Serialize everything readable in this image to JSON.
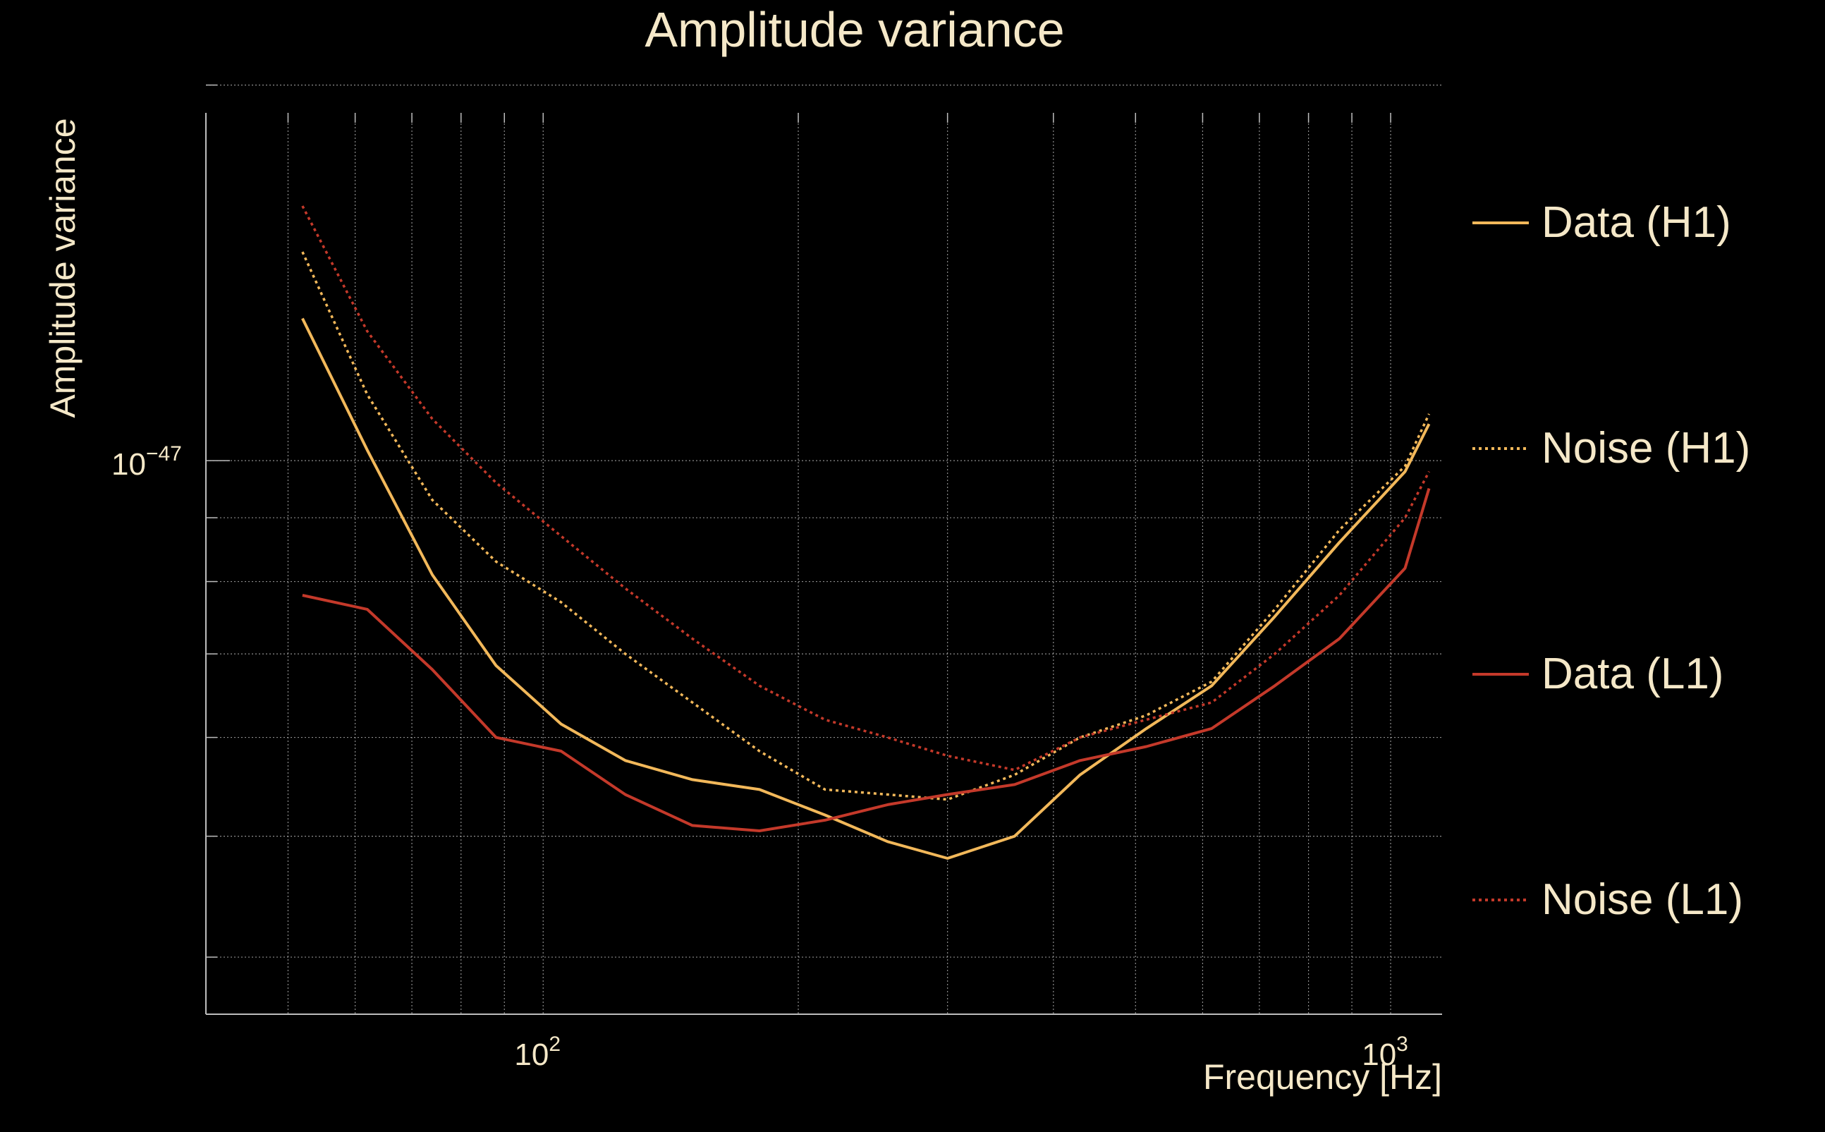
{
  "colors": {
    "background": "#000000",
    "text": "#F5E8C8",
    "grid": "#bdbdbd",
    "axis": "#bdbdbd"
  },
  "chart_data": {
    "type": "line",
    "title": "Amplitude variance",
    "xlabel": "Frequency [Hz]",
    "ylabel": "Amplitude variance",
    "xscale": "log",
    "yscale": "log",
    "xlim": [
      40,
      1150
    ],
    "ylim": [
      3.6e-48,
      1.9e-47
    ],
    "grid": true,
    "legend_position": "right",
    "x_tick_labels": [
      {
        "value": 100,
        "base": "10",
        "exp": "2"
      },
      {
        "value": 1000,
        "base": "10",
        "exp": "3"
      }
    ],
    "y_tick_labels": [
      {
        "value": 1e-47,
        "base": "10",
        "exp": "−47"
      }
    ],
    "x_minor_ticks": [
      40,
      50,
      60,
      70,
      80,
      90,
      200,
      300,
      400,
      500,
      600,
      700,
      800,
      900
    ],
    "y_minor_ticks": [
      4e-48,
      5e-48,
      6e-48,
      7e-48,
      8e-48,
      9e-48,
      2e-47
    ],
    "series": [
      {
        "name": "Data (H1)",
        "color": "#F2B85A",
        "dash": "solid",
        "x": [
          52,
          62,
          74,
          88,
          105,
          125,
          150,
          180,
          215,
          255,
          300,
          360,
          430,
          515,
          615,
          730,
          870,
          1040,
          1110
        ],
        "y": [
          1.3e-47,
          1.02e-47,
          8.1e-48,
          6.85e-48,
          6.15e-48,
          5.75e-48,
          5.55e-48,
          5.45e-48,
          5.2e-48,
          4.95e-48,
          4.8e-48,
          5e-48,
          5.6e-48,
          6.1e-48,
          6.6e-48,
          7.5e-48,
          8.6e-48,
          9.8e-48,
          1.07e-47
        ]
      },
      {
        "name": "Noise (H1)",
        "color": "#F2B85A",
        "dash": "dotted",
        "x": [
          52,
          62,
          74,
          88,
          105,
          125,
          150,
          180,
          215,
          255,
          300,
          360,
          430,
          515,
          615,
          730,
          870,
          1040,
          1110
        ],
        "y": [
          1.47e-47,
          1.13e-47,
          9.3e-48,
          8.3e-48,
          7.7e-48,
          7e-48,
          6.4e-48,
          5.85e-48,
          5.45e-48,
          5.4e-48,
          5.35e-48,
          5.6e-48,
          6e-48,
          6.25e-48,
          6.65e-48,
          7.6e-48,
          8.8e-48,
          9.9e-48,
          1.09e-47
        ]
      },
      {
        "name": "Data (L1)",
        "color": "#C4392A",
        "dash": "solid",
        "x": [
          52,
          62,
          74,
          88,
          105,
          125,
          150,
          180,
          215,
          255,
          300,
          360,
          430,
          515,
          615,
          730,
          870,
          1040,
          1110
        ],
        "y": [
          7.8e-48,
          7.6e-48,
          6.8e-48,
          6e-48,
          5.85e-48,
          5.4e-48,
          5.1e-48,
          5.05e-48,
          5.15e-48,
          5.3e-48,
          5.4e-48,
          5.5e-48,
          5.75e-48,
          5.9e-48,
          6.1e-48,
          6.6e-48,
          7.2e-48,
          8.2e-48,
          9.5e-48
        ]
      },
      {
        "name": "Noise (L1)",
        "color": "#C4392A",
        "dash": "dotted",
        "x": [
          52,
          62,
          74,
          88,
          105,
          125,
          150,
          180,
          215,
          255,
          300,
          360,
          430,
          515,
          615,
          730,
          870,
          1040,
          1110
        ],
        "y": [
          1.6e-47,
          1.27e-47,
          1.08e-47,
          9.6e-48,
          8.7e-48,
          7.9e-48,
          7.2e-48,
          6.6e-48,
          6.2e-48,
          6e-48,
          5.8e-48,
          5.65e-48,
          6e-48,
          6.2e-48,
          6.4e-48,
          7e-48,
          7.8e-48,
          9e-48,
          9.8e-48
        ]
      }
    ]
  }
}
